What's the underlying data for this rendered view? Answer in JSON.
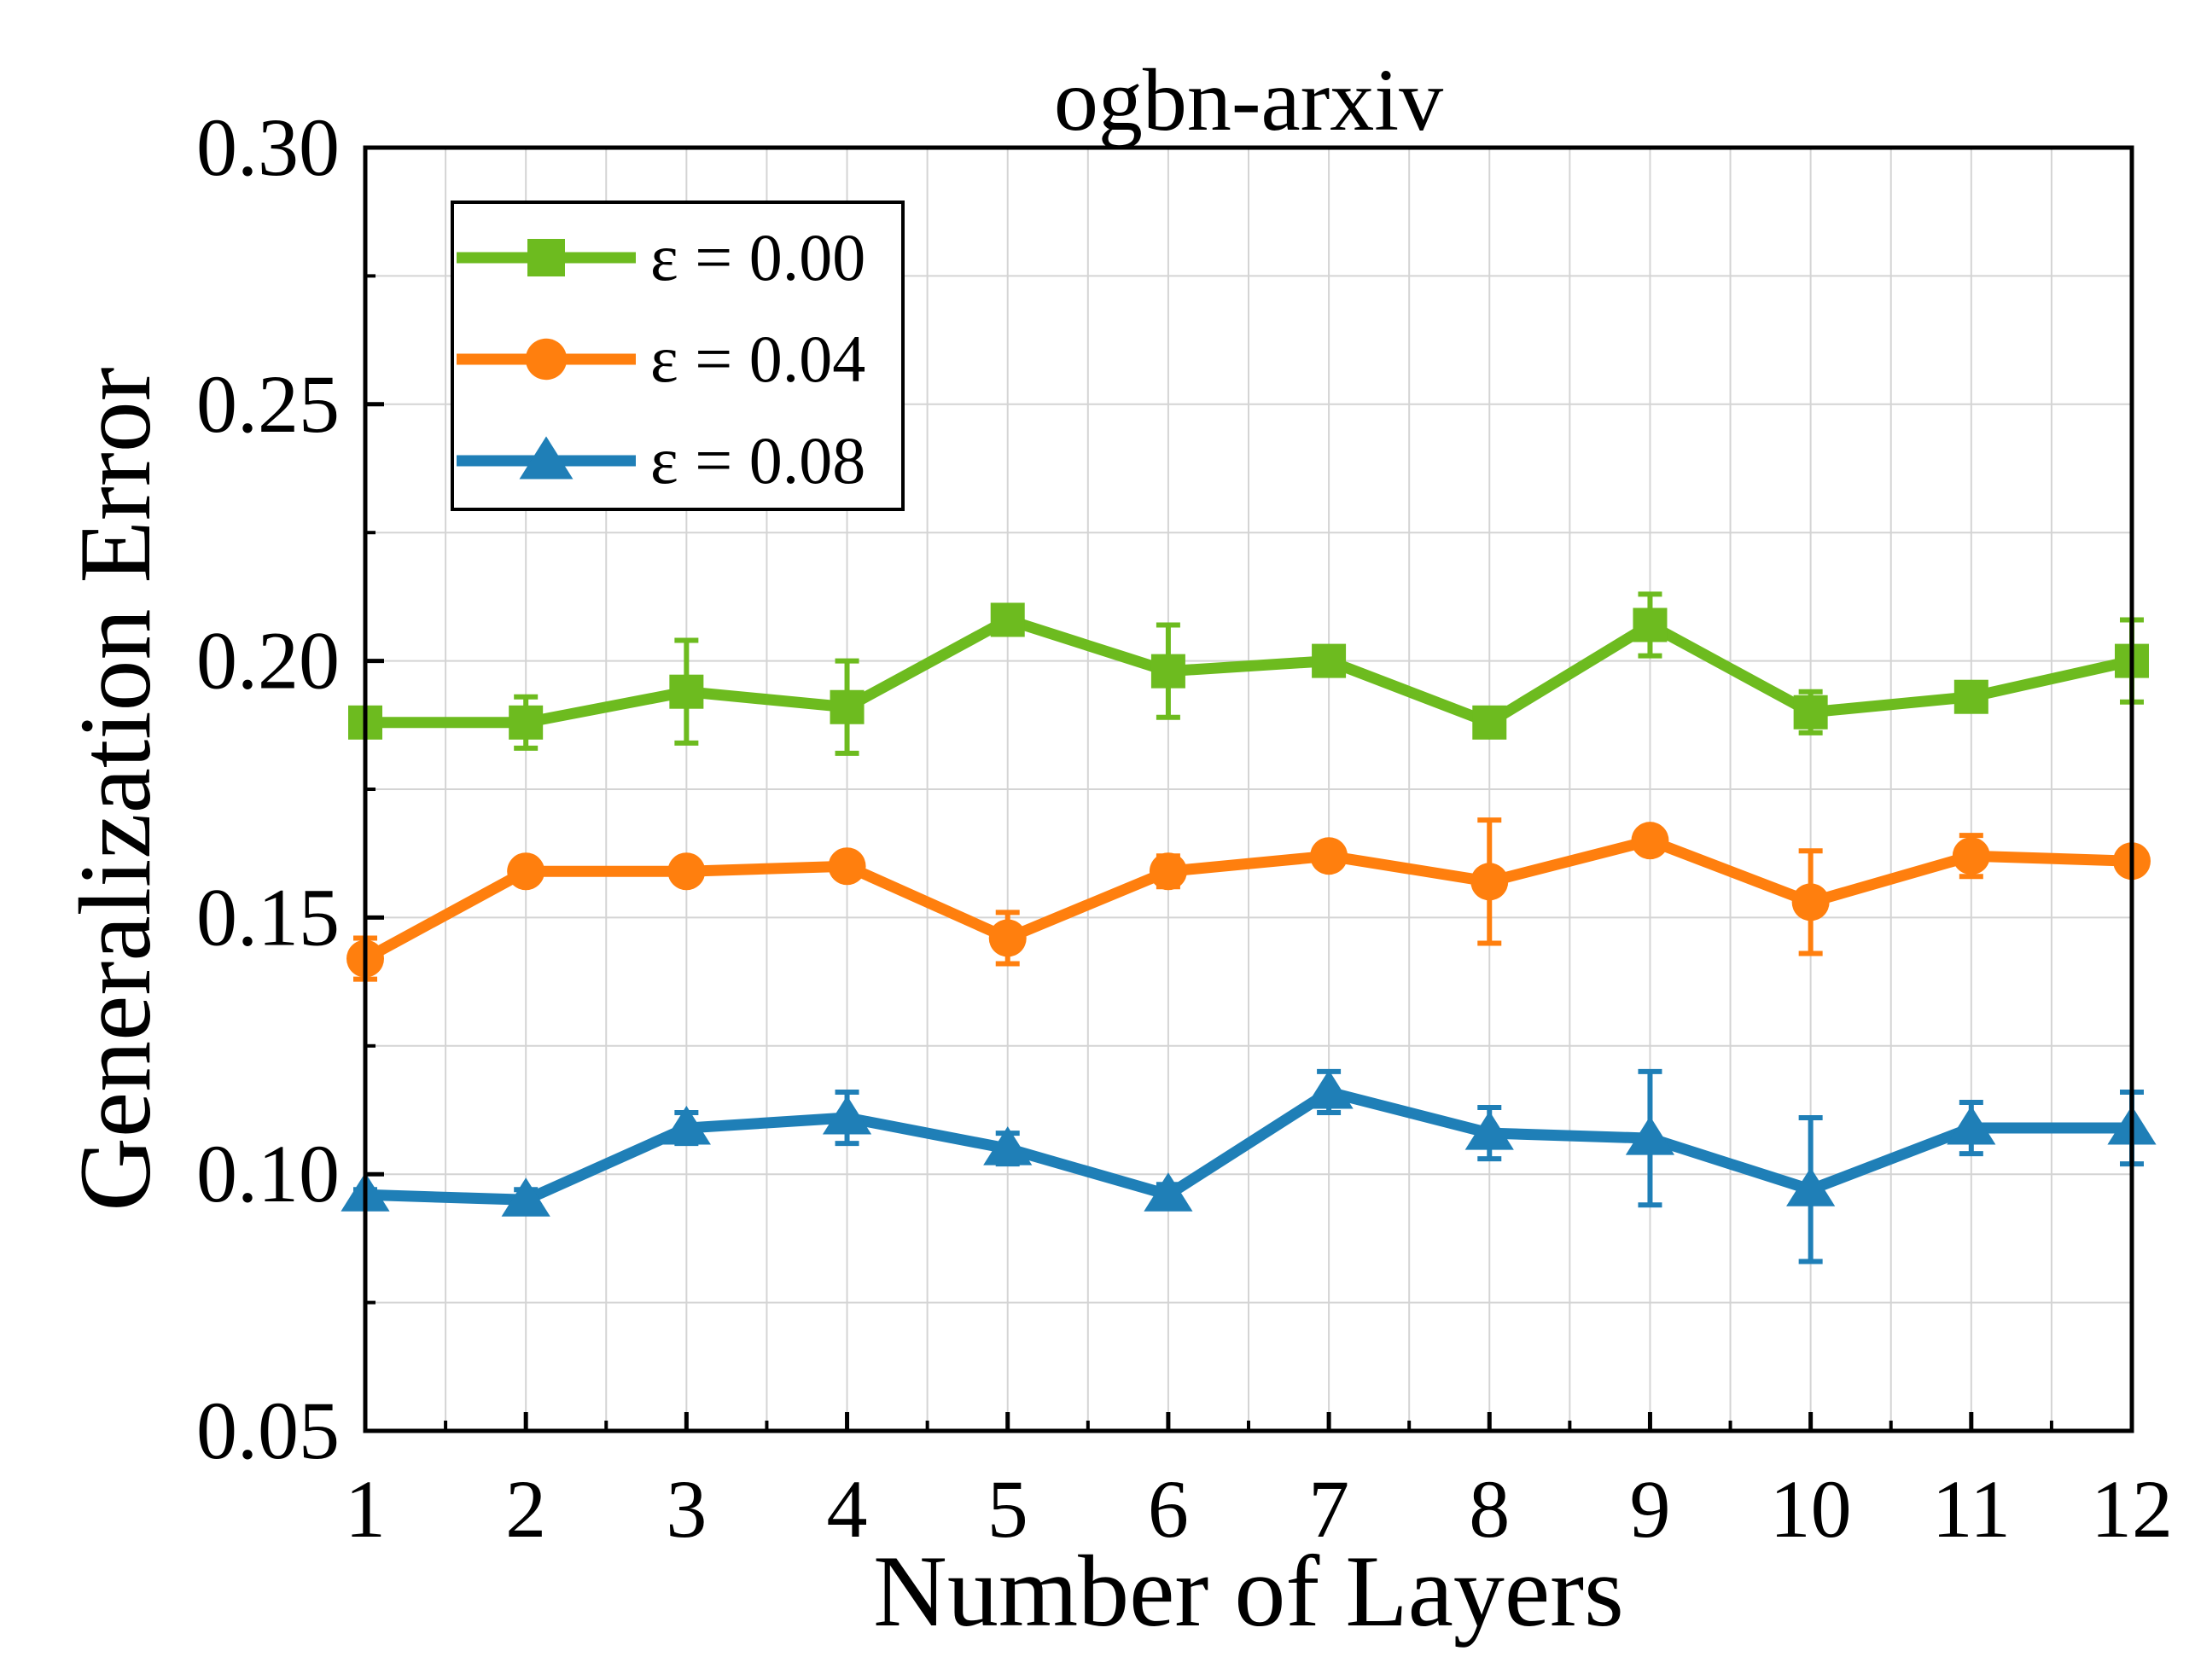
{
  "chart_data": {
    "type": "line",
    "title": "ogbn-arxiv",
    "xlabel": "Number of Layers",
    "ylabel": "Generalization Error",
    "x": [
      1,
      2,
      3,
      4,
      5,
      6,
      7,
      8,
      9,
      10,
      11,
      12
    ],
    "xlim": [
      1,
      12
    ],
    "ylim": [
      0.05,
      0.3
    ],
    "xticks": [
      "1",
      "2",
      "3",
      "4",
      "5",
      "6",
      "7",
      "8",
      "9",
      "10",
      "11",
      "12"
    ],
    "yticks": [
      "0.05",
      "0.10",
      "0.15",
      "0.20",
      "0.25",
      "0.30"
    ],
    "grid": true,
    "legend_position": "top-left",
    "series": [
      {
        "name": "ε = 0.00",
        "color": "#6dbb1f",
        "marker": "square",
        "values": [
          0.188,
          0.188,
          0.194,
          0.191,
          0.208,
          0.198,
          0.2,
          0.188,
          0.207,
          0.19,
          0.193,
          0.2
        ],
        "errors": [
          0.001,
          0.005,
          0.01,
          0.009,
          0.001,
          0.009,
          0.001,
          0.001,
          0.006,
          0.004,
          0.001,
          0.008
        ]
      },
      {
        "name": "ε = 0.04",
        "color": "#ff7f0e",
        "marker": "circle",
        "values": [
          0.142,
          0.159,
          0.159,
          0.16,
          0.146,
          0.159,
          0.162,
          0.157,
          0.165,
          0.153,
          0.162,
          0.161
        ],
        "errors": [
          0.004,
          0.001,
          0.001,
          0.001,
          0.005,
          0.003,
          0.001,
          0.012,
          0.001,
          0.01,
          0.004,
          0.001
        ]
      },
      {
        "name": "ε = 0.08",
        "color": "#1f7fb7",
        "marker": "triangle",
        "values": [
          0.096,
          0.095,
          0.109,
          0.111,
          0.105,
          0.096,
          0.116,
          0.108,
          0.107,
          0.097,
          0.109,
          0.109
        ],
        "errors": [
          0.001,
          0.002,
          0.003,
          0.005,
          0.003,
          0.002,
          0.004,
          0.005,
          0.013,
          0.014,
          0.005,
          0.007
        ]
      }
    ]
  }
}
